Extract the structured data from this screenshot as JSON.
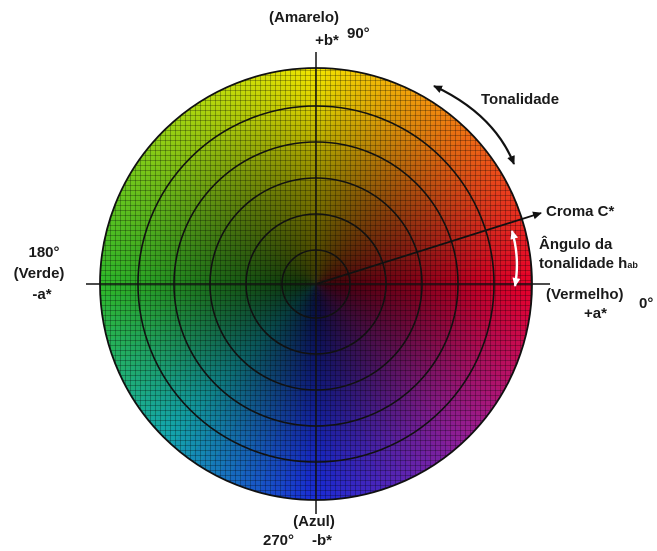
{
  "labels": {
    "yellow_name": "(Amarelo)",
    "plus_b": "+b*",
    "deg_90": "90°",
    "hue": "Tonalidade",
    "chroma": "Croma C*",
    "hue_angle_line1": "Ângulo da",
    "hue_angle_line2": "tonalidade h",
    "hue_angle_sub": "ab",
    "deg_180": "180°",
    "green_name": "(Verde)",
    "minus_a": "-a*",
    "red_name": "(Vermelho)",
    "deg_0": "0°",
    "plus_a": "+a*",
    "blue_name": "(Azul)",
    "deg_270": "270°",
    "minus_b": "-b*"
  },
  "colors": {
    "yellow": "#f2e600",
    "red": "#e8002a",
    "blue": "#1a2bd8",
    "green": "#2fb82a",
    "lines": "#111111",
    "arrow_white": "#ffffff"
  }
}
